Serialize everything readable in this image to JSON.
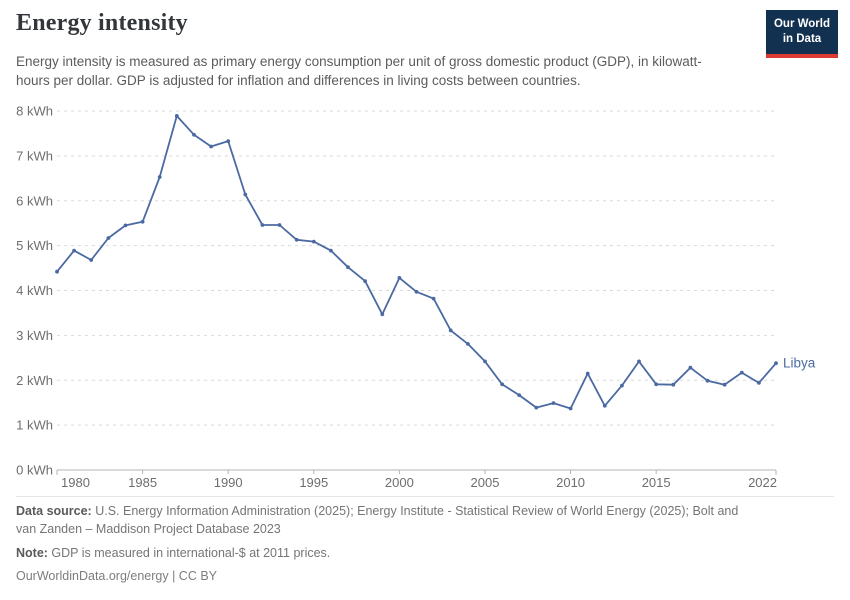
{
  "header": {
    "title": "Energy intensity",
    "subtitle": "Energy intensity is measured as primary energy consumption per unit of gross domestic product (GDP), in kilowatt-hours per dollar. GDP is adjusted for inflation and differences in living costs between countries.",
    "logo": {
      "line1": "Our World",
      "line2": "in Data"
    }
  },
  "chart_data": {
    "type": "line",
    "title": "Energy intensity",
    "unit": "kWh",
    "xlim": [
      1980,
      2022
    ],
    "ylim": [
      0,
      8
    ],
    "x_ticks": [
      1980,
      1985,
      1990,
      1995,
      2000,
      2005,
      2010,
      2015,
      2022
    ],
    "y_ticks": [
      0,
      1,
      2,
      3,
      4,
      5,
      6,
      7,
      8
    ],
    "grid": "dashed-horizontal",
    "legend_position": "end-of-line-label",
    "series": [
      {
        "name": "Libya",
        "color": "#4c6aa2",
        "x": [
          1980,
          1981,
          1982,
          1983,
          1984,
          1985,
          1986,
          1987,
          1988,
          1989,
          1990,
          1991,
          1992,
          1993,
          1994,
          1995,
          1996,
          1997,
          1998,
          1999,
          2000,
          2001,
          2002,
          2003,
          2004,
          2005,
          2006,
          2007,
          2008,
          2009,
          2010,
          2011,
          2012,
          2013,
          2014,
          2015,
          2016,
          2017,
          2018,
          2019,
          2020,
          2021,
          2022
        ],
        "values": [
          4.42,
          4.89,
          4.68,
          5.17,
          5.45,
          5.53,
          6.53,
          7.89,
          7.47,
          7.21,
          7.33,
          6.14,
          5.46,
          5.46,
          5.13,
          5.09,
          4.89,
          4.52,
          4.21,
          3.47,
          4.28,
          3.97,
          3.82,
          3.11,
          2.81,
          2.42,
          1.91,
          1.67,
          1.39,
          1.49,
          1.37,
          2.15,
          1.43,
          1.88,
          2.42,
          1.91,
          1.9,
          2.28,
          1.99,
          1.9,
          2.17,
          1.94,
          2.38
        ]
      }
    ]
  },
  "footer": {
    "datasource_label": "Data source:",
    "datasource_text": " U.S. Energy Information Administration (2025); Energy Institute - Statistical Review of World Energy (2025); Bolt and van Zanden – Maddison Project Database 2023",
    "note_label": "Note:",
    "note_text": " GDP is measured in international-$ at 2011 prices.",
    "link_text": "OurWorldinData.org/energy | CC BY"
  },
  "colors": {
    "line": "#4c6aa2",
    "entity_label": "#4c6aa2",
    "grid": "#d9d9d9",
    "axis": "#b3b3b3",
    "tick_label": "#6e6e6e",
    "logo_bg": "#12304f",
    "logo_stripe": "#dc3a32",
    "title": "#33373c",
    "subtitle": "#5b5b5b",
    "footer": "#757575"
  }
}
